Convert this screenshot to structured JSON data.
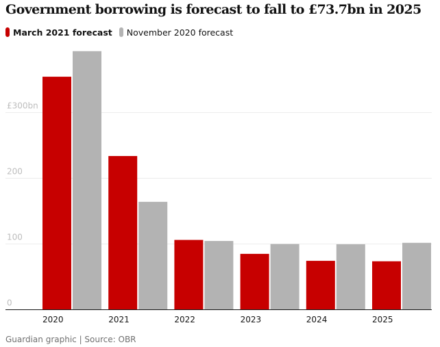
{
  "title": "Government borrowing is forecast to fall to £73.7bn in 2025",
  "legend": [
    {
      "label": "March 2021 forecast",
      "color": "#c70000"
    },
    {
      "label": "November 2020 forecast",
      "color": "#b3b3b3"
    }
  ],
  "source": "Guardian graphic | Source: OBR",
  "chart_data": {
    "type": "bar",
    "title": "Government borrowing is forecast to fall to £73.7bn in 2025",
    "categories": [
      "2020",
      "2021",
      "2022",
      "2023",
      "2024",
      "2025"
    ],
    "series": [
      {
        "name": "March 2021 forecast",
        "color": "#c70000",
        "values": [
          354.6,
          233.9,
          106.2,
          85.0,
          74.4,
          73.7
        ]
      },
      {
        "name": "November 2020 forecast",
        "color": "#b3b3b3",
        "values": [
          393.5,
          164.2,
          104.6,
          100.0,
          99.6,
          101.8
        ]
      }
    ],
    "y_ticks": [
      {
        "value": 0,
        "label": "0"
      },
      {
        "value": 100,
        "label": "100"
      },
      {
        "value": 200,
        "label": "200"
      },
      {
        "value": 300,
        "label": "£300bn"
      }
    ],
    "ylim": [
      0,
      400
    ],
    "grid": true,
    "legend_position": "top-left"
  }
}
